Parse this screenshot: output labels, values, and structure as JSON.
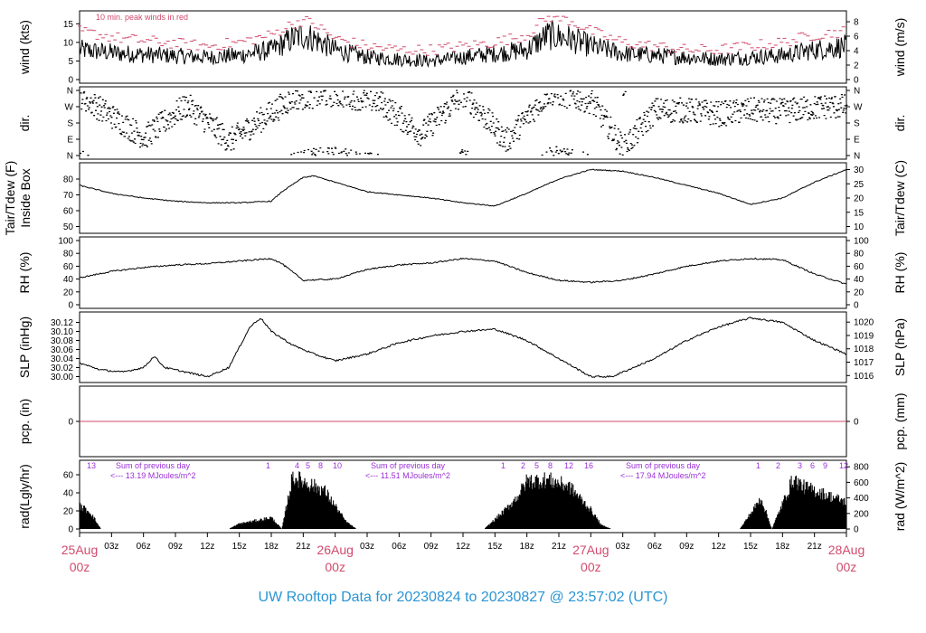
{
  "title": "UW Rooftop Data for 20230824  to  20230827 @ 23:57:02  (UTC)",
  "annotations": {
    "wind_note": "10 min. peak winds in red",
    "rad_notes": [
      {
        "line1": "Sum of previous day",
        "line2": "<--- 13.19 MJoules/m^2"
      },
      {
        "line1": "Sum of previous day",
        "line2": "<--- 11.51 MJoules/m^2"
      },
      {
        "line1": "Sum of previous day",
        "line2": "<--- 17.94 MJoules/m^2"
      }
    ],
    "hour_markers": [
      "13",
      "1",
      "4",
      "5",
      "8",
      "10",
      "1",
      "2",
      "5",
      "8",
      "12",
      "16",
      "1",
      "2",
      "3",
      "6",
      "9",
      "12"
    ]
  },
  "colors": {
    "peak": "#d14a6c",
    "precip_line": "#d14a6c",
    "title": "#2a95d4",
    "note": "#9a2fd6",
    "day_label": "#d14a6c"
  },
  "chart_data": [
    {
      "type": "line",
      "id": "wind",
      "ylabel_left": "wind (kts)",
      "ylabel_right": "wind (m/s)",
      "yticks_left": [
        0,
        5,
        10,
        15
      ],
      "yticks_right": [
        0,
        2,
        4,
        6,
        8
      ],
      "ylim": [
        0,
        17.5
      ],
      "x_hours": [
        0,
        4,
        8,
        12,
        15,
        18,
        20,
        21,
        22,
        24,
        27,
        30,
        33,
        36,
        39,
        42,
        44,
        46,
        48,
        51,
        54,
        57,
        60,
        63,
        66,
        69,
        72
      ],
      "series": [
        {
          "values": [
            8,
            7,
            6.5,
            6,
            6.5,
            8,
            11,
            12,
            11,
            8,
            6,
            5.5,
            5,
            6,
            7,
            8,
            12,
            11,
            9,
            7,
            6.5,
            6,
            5.5,
            6,
            6.5,
            8,
            9
          ]
        },
        {
          "values": [
            13,
            11,
            10,
            9,
            10,
            12,
            15,
            16,
            15,
            11,
            9,
            8,
            8,
            9,
            10,
            12,
            17,
            16,
            13,
            10,
            9,
            8,
            8,
            9,
            10,
            12,
            13
          ]
        }
      ]
    },
    {
      "type": "scatter",
      "id": "dir",
      "ylabel_left": "dir.",
      "ylabel_right": "dir.",
      "yticks_left": [
        "N",
        "E",
        "S",
        "W",
        "N"
      ],
      "yticks_right": [
        "N",
        "E",
        "S",
        "W",
        "N"
      ]
    },
    {
      "type": "line",
      "id": "temp",
      "ylabel_left": "Tair/Tdew (F)",
      "ylabel_left2": "Inside Box",
      "ylabel_right": "Tair/Tdew (C)",
      "yticks_left": [
        50,
        60,
        70,
        80
      ],
      "yticks_right": [
        10,
        15,
        20,
        25,
        30
      ],
      "ylim": [
        48,
        88
      ],
      "x_hours": [
        0,
        3,
        6,
        9,
        12,
        15,
        18,
        19,
        21,
        22,
        24,
        27,
        30,
        33,
        36,
        39,
        42,
        45,
        48,
        51,
        54,
        57,
        60,
        63,
        66,
        69,
        72
      ],
      "values": [
        76,
        71,
        68,
        66,
        65,
        65,
        66,
        72,
        81,
        82,
        78,
        72,
        70,
        68,
        65,
        63,
        71,
        80,
        86,
        85,
        81,
        76,
        71,
        64,
        68,
        78,
        86
      ]
    },
    {
      "type": "line",
      "id": "rh",
      "ylabel_left": "RH (%)",
      "ylabel_right": "RH (%)",
      "yticks_left": [
        0,
        20,
        40,
        60,
        80,
        100
      ],
      "yticks_right": [
        0,
        20,
        40,
        60,
        80,
        100
      ],
      "ylim": [
        0,
        100
      ],
      "x_hours": [
        0,
        3,
        6,
        9,
        12,
        15,
        18,
        19,
        21,
        24,
        27,
        30,
        33,
        36,
        39,
        42,
        45,
        48,
        51,
        54,
        57,
        60,
        63,
        66,
        69,
        72
      ],
      "values": [
        42,
        52,
        58,
        62,
        64,
        68,
        72,
        64,
        38,
        40,
        55,
        62,
        65,
        72,
        68,
        50,
        38,
        35,
        38,
        48,
        60,
        68,
        72,
        70,
        48,
        32
      ]
    },
    {
      "type": "line",
      "id": "slp",
      "ylabel_left": "SLP (inHg)",
      "ylabel_right": "SLP (hPa)",
      "yticks_left": [
        "30.00",
        "30.02",
        "30.04",
        "30.06",
        "30.08",
        "30.10",
        "30.12"
      ],
      "yticks_right": [
        1016,
        1017,
        1018,
        1019,
        1020
      ],
      "ylim": [
        29.995,
        30.135
      ],
      "x_hours": [
        0,
        2,
        4,
        6,
        7,
        8,
        10,
        12,
        14,
        16,
        17,
        18,
        20,
        22,
        24,
        27,
        30,
        33,
        36,
        39,
        42,
        45,
        48,
        50,
        51,
        54,
        57,
        60,
        63,
        66,
        69,
        72
      ],
      "values": [
        30.03,
        30.015,
        30.01,
        30.02,
        30.045,
        30.02,
        30.01,
        30.0,
        30.02,
        30.11,
        30.13,
        30.1,
        30.07,
        30.05,
        30.035,
        30.05,
        30.075,
        30.09,
        30.1,
        30.105,
        30.08,
        30.04,
        30.0,
        30.0,
        30.01,
        30.04,
        30.08,
        30.11,
        30.13,
        30.12,
        30.08,
        30.05
      ]
    },
    {
      "type": "line",
      "id": "pcp",
      "ylabel_left": "pcp. (in)",
      "ylabel_right": "pcp. (mm)",
      "yticks_left": [
        0
      ],
      "yticks_right": [
        0
      ],
      "values": [
        0
      ]
    },
    {
      "type": "area",
      "id": "rad",
      "ylabel_left": "rad(Lgly/hr)",
      "ylabel_right": "rad (W/m^2)",
      "yticks_left": [
        0,
        20,
        40,
        60
      ],
      "yticks_right": [
        0,
        200,
        400,
        600,
        800
      ],
      "ylim": [
        0,
        72
      ],
      "x_hours": [
        0,
        1,
        2,
        14,
        15,
        17,
        18,
        19,
        20,
        23,
        25,
        26,
        38,
        40,
        41,
        42,
        44,
        46,
        48,
        49,
        50,
        62,
        63,
        64,
        65,
        67,
        68,
        69,
        72
      ],
      "values": [
        30,
        22,
        0,
        0,
        7,
        12,
        15,
        0,
        68,
        50,
        10,
        0,
        0,
        25,
        40,
        62,
        64,
        55,
        25,
        5,
        0,
        0,
        20,
        40,
        0,
        65,
        55,
        50,
        35
      ]
    }
  ],
  "x_axis": {
    "tick_labels": [
      "03z",
      "06z",
      "09z",
      "12z",
      "15z",
      "18z",
      "21z",
      "03z",
      "06z",
      "09z",
      "12z",
      "15z",
      "18z",
      "21z",
      "03z",
      "06z",
      "09z",
      "12z",
      "15z",
      "18z",
      "21z"
    ],
    "day_labels": [
      {
        "date": "25Aug",
        "hour": "00z"
      },
      {
        "date": "26Aug",
        "hour": "00z"
      },
      {
        "date": "27Aug",
        "hour": "00z"
      },
      {
        "date": "28Aug",
        "hour": "00z"
      }
    ]
  }
}
